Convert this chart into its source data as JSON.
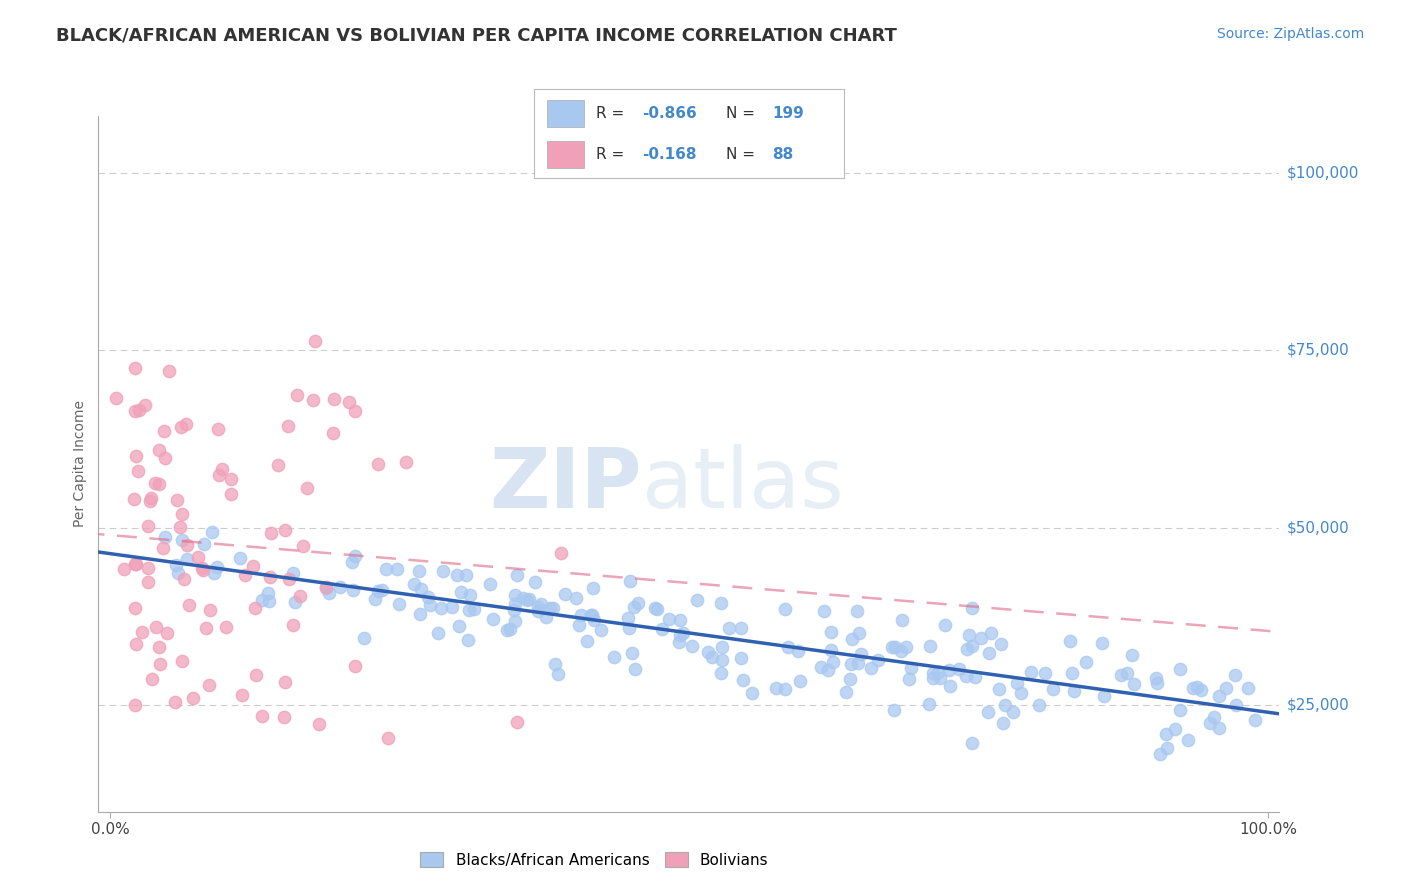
{
  "title": "BLACK/AFRICAN AMERICAN VS BOLIVIAN PER CAPITA INCOME CORRELATION CHART",
  "source_text": "Source: ZipAtlas.com",
  "ylabel": "Per Capita Income",
  "xlim": [
    -0.01,
    1.01
  ],
  "ylim": [
    10000,
    108000
  ],
  "xticks": [
    0.0,
    1.0
  ],
  "xticklabels": [
    "0.0%",
    "100.0%"
  ],
  "yticks": [
    25000,
    50000,
    75000,
    100000
  ],
  "yticklabels": [
    "$25,000",
    "$50,000",
    "$75,000",
    "$100,000"
  ],
  "blue_dot_color": "#a8c8f0",
  "pink_dot_color": "#f0a0b8",
  "blue_line_color": "#3060b0",
  "pink_line_color": "#e06888",
  "blue_r": -0.866,
  "blue_n": 199,
  "pink_r": -0.168,
  "pink_n": 88,
  "watermark_zip": "ZIP",
  "watermark_atlas": "atlas",
  "legend_label_blue": "Blacks/African Americans",
  "legend_label_pink": "Bolivians",
  "background_color": "#ffffff",
  "grid_color": "#cccccc",
  "title_color": "#333333",
  "axis_label_color": "#666666",
  "ytick_color": "#4488cc",
  "source_color": "#4488cc",
  "seed": 7
}
